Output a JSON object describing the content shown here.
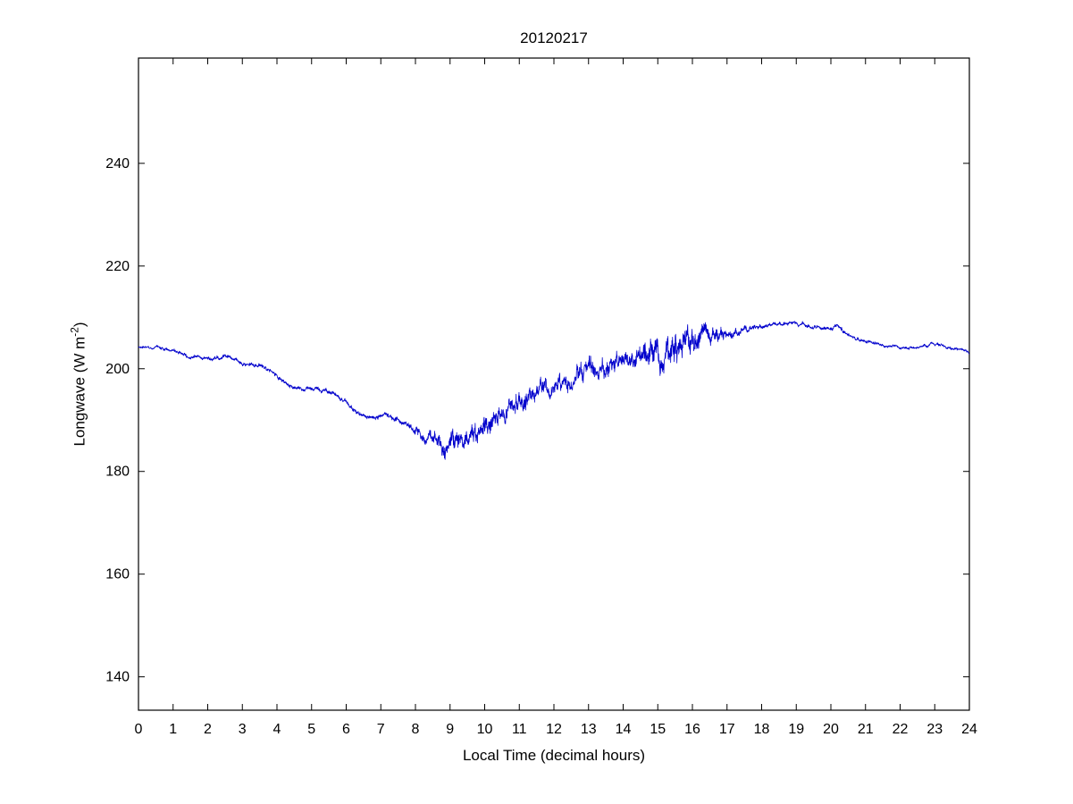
{
  "figure": {
    "title": "20120217",
    "xlabel": "Local Time (decimal hours)",
    "ylabel_prefix": "Longwave (W m",
    "ylabel_sup": "-2",
    "ylabel_suffix": ")"
  },
  "chart_data": {
    "type": "line",
    "title": "20120217",
    "xlabel": "Local Time (decimal hours)",
    "ylabel": "Longwave (W m^-2)",
    "legend": "none",
    "grid": false,
    "xlim": [
      0,
      24
    ],
    "ylim": [
      133.5,
      260.5
    ],
    "x_ticks": [
      0,
      1,
      2,
      3,
      4,
      5,
      6,
      7,
      8,
      9,
      10,
      11,
      12,
      13,
      14,
      15,
      16,
      17,
      18,
      19,
      20,
      21,
      22,
      23,
      24
    ],
    "y_ticks": [
      140,
      160,
      180,
      200,
      220,
      240
    ],
    "line_color": "#0000CC",
    "series": [
      {
        "name": "longwave",
        "anchors_x": [
          0,
          0.5,
          1,
          1.5,
          2,
          2.3,
          2.6,
          3,
          3.5,
          4,
          4.4,
          5,
          5.5,
          6,
          6.4,
          6.8,
          7.1,
          7.3,
          7.6,
          8,
          8.4,
          8.8,
          9.2,
          9.6,
          10,
          10.5,
          11,
          11.5,
          12,
          12.5,
          13,
          13.3,
          13.7,
          14,
          14.5,
          15,
          15.4,
          15.8,
          16.2,
          16.6,
          17,
          17.5,
          18,
          18.5,
          19,
          19.5,
          20,
          20.2,
          20.5,
          21,
          21.5,
          22,
          22.5,
          23,
          23.4,
          24
        ],
        "anchors_y": [
          204.3,
          204.1,
          203.4,
          202.4,
          201.9,
          202.1,
          202.6,
          201.1,
          200.6,
          198.7,
          196.4,
          196.1,
          195.4,
          193.6,
          191.0,
          190.2,
          191.0,
          190.6,
          189.3,
          188.0,
          186.3,
          184.6,
          184.8,
          185.8,
          188.0,
          191.0,
          193.8,
          195.2,
          196.8,
          198.3,
          199.8,
          198.5,
          200.3,
          201.3,
          202.8,
          203.3,
          203.0,
          204.8,
          205.8,
          206.5,
          206.6,
          207.5,
          208.2,
          208.8,
          208.7,
          208.1,
          207.7,
          208.5,
          206.4,
          205.3,
          204.7,
          204.2,
          204.1,
          204.9,
          204.1,
          203.2
        ],
        "noise_amp": [
          0.4,
          0.4,
          0.5,
          0.5,
          0.5,
          0.5,
          0.5,
          0.5,
          0.5,
          0.6,
          0.5,
          0.5,
          0.6,
          0.6,
          0.6,
          0.6,
          0.6,
          0.7,
          0.8,
          1.2,
          1.8,
          2.4,
          2.6,
          2.6,
          2.6,
          2.6,
          2.4,
          2.2,
          2.3,
          2.4,
          2.6,
          2.4,
          2.5,
          2.6,
          2.8,
          3.6,
          4.2,
          3.8,
          3.2,
          2.2,
          1.2,
          0.8,
          0.6,
          0.5,
          0.5,
          0.5,
          0.6,
          0.7,
          0.5,
          0.5,
          0.4,
          0.4,
          0.4,
          0.5,
          0.4,
          0.4
        ]
      }
    ]
  }
}
